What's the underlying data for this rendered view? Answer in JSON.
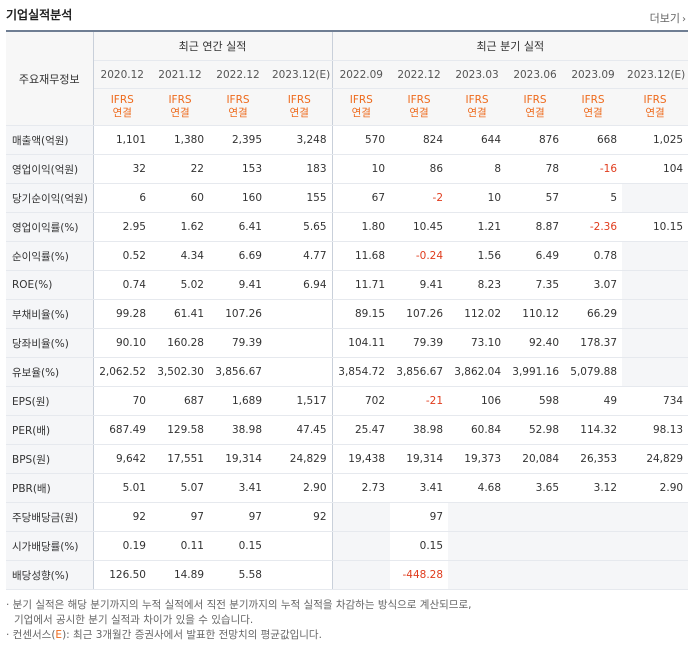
{
  "header": {
    "title": "기업실적분석",
    "more_label": "더보기",
    "more_arrow": "›"
  },
  "table": {
    "row_header_label": "주요재무정보",
    "groups": [
      "최근 연간 실적",
      "최근 분기 실적"
    ],
    "periods": [
      "2020.12",
      "2021.12",
      "2022.12",
      "2023.12(E)",
      "2022.09",
      "2022.12",
      "2023.03",
      "2023.06",
      "2023.09",
      "2023.12(E)"
    ],
    "basis_top": "IFRS",
    "basis_bottom": "연결",
    "rows": [
      {
        "label": "매출액(억원)",
        "values": [
          "1,101",
          "1,380",
          "2,395",
          "3,248",
          "570",
          "824",
          "644",
          "876",
          "668",
          "1,025"
        ]
      },
      {
        "label": "영업이익(억원)",
        "values": [
          "32",
          "22",
          "153",
          "183",
          "10",
          "86",
          "8",
          "78",
          "-16",
          "104"
        ]
      },
      {
        "label": "당기순이익(억원)",
        "values": [
          "6",
          "60",
          "160",
          "155",
          "67",
          "-2",
          "10",
          "57",
          "5",
          ""
        ]
      },
      {
        "label": "영업이익률(%)",
        "values": [
          "2.95",
          "1.62",
          "6.41",
          "5.65",
          "1.80",
          "10.45",
          "1.21",
          "8.87",
          "-2.36",
          "10.15"
        ]
      },
      {
        "label": "순이익률(%)",
        "values": [
          "0.52",
          "4.34",
          "6.69",
          "4.77",
          "11.68",
          "-0.24",
          "1.56",
          "6.49",
          "0.78",
          ""
        ]
      },
      {
        "label": "ROE(%)",
        "values": [
          "0.74",
          "5.02",
          "9.41",
          "6.94",
          "11.71",
          "9.41",
          "8.23",
          "7.35",
          "3.07",
          ""
        ]
      },
      {
        "label": "부채비율(%)",
        "values": [
          "99.28",
          "61.41",
          "107.26",
          "",
          "89.15",
          "107.26",
          "112.02",
          "110.12",
          "66.29",
          ""
        ]
      },
      {
        "label": "당좌비율(%)",
        "values": [
          "90.10",
          "160.28",
          "79.39",
          "",
          "104.11",
          "79.39",
          "73.10",
          "92.40",
          "178.37",
          ""
        ]
      },
      {
        "label": "유보율(%)",
        "values": [
          "2,062.52",
          "3,502.30",
          "3,856.67",
          "",
          "3,854.72",
          "3,856.67",
          "3,862.04",
          "3,991.16",
          "5,079.88",
          ""
        ]
      },
      {
        "label": "EPS(원)",
        "values": [
          "70",
          "687",
          "1,689",
          "1,517",
          "702",
          "-21",
          "106",
          "598",
          "49",
          "734"
        ]
      },
      {
        "label": "PER(배)",
        "values": [
          "687.49",
          "129.58",
          "38.98",
          "47.45",
          "25.47",
          "38.98",
          "60.84",
          "52.98",
          "114.32",
          "98.13"
        ]
      },
      {
        "label": "BPS(원)",
        "values": [
          "9,642",
          "17,551",
          "19,314",
          "24,829",
          "19,438",
          "19,314",
          "19,373",
          "20,084",
          "26,353",
          "24,829"
        ]
      },
      {
        "label": "PBR(배)",
        "values": [
          "5.01",
          "5.07",
          "3.41",
          "2.90",
          "2.73",
          "3.41",
          "4.68",
          "3.65",
          "3.12",
          "2.90"
        ]
      },
      {
        "label": "주당배당금(원)",
        "values": [
          "92",
          "97",
          "97",
          "92",
          "",
          "97",
          "",
          "",
          "",
          ""
        ]
      },
      {
        "label": "시가배당률(%)",
        "values": [
          "0.19",
          "0.11",
          "0.15",
          "",
          "",
          "0.15",
          "",
          "",
          "",
          ""
        ]
      },
      {
        "label": "배당성향(%)",
        "values": [
          "126.50",
          "14.89",
          "5.58",
          "",
          "",
          "-448.28",
          "",
          "",
          "",
          ""
        ]
      }
    ]
  },
  "notes": {
    "line1": "· 분기 실적은 해당 분기까지의 누적 실적에서 직전 분기까지의 누적 실적을 차감하는 방식으로 계산되므로,",
    "line2": "기업에서 공시한 분기 실적과 차이가 있을 수 있습니다.",
    "line3_prefix": "· 컨센서스(",
    "line3_e": "E",
    "line3_suffix": "): 최근 3개월간 증권사에서 발표한 전망치의 평균값입니다."
  },
  "colors": {
    "accent": "#ee6a1c",
    "negative": "#e03c1d",
    "border_top": "#6f7e93"
  }
}
